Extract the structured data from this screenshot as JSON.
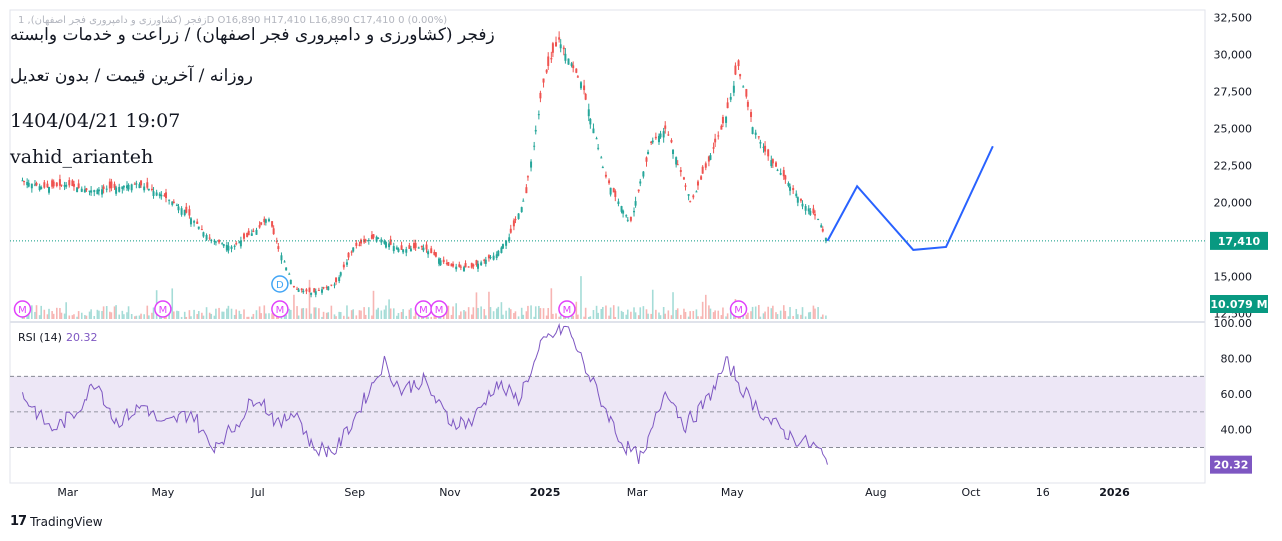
{
  "header": {
    "title": "زفجر (کشاورزی و دامپروری فجر اصفهان) / زراعت و خدمات وابسته",
    "subtitle": "روزانه / آخرین قیمت / بدون تعدیل",
    "datetime": "1404/04/21 19:07",
    "author": "vahid_arianteh",
    "ohlc_line": "زفجر (کشاورزی و دامپروری فجر اصفهان), 1D  O16,890  H17,410  L16,890  C17,410  0 (0.00%)"
  },
  "colors": {
    "up": "#26a69a",
    "down": "#ef5350",
    "projection": "#2962ff",
    "rsi_line": "#7e57c2",
    "rsi_band": "#ede7f6",
    "price_tag": "#089981",
    "rsi_tag": "#7e57c2",
    "marker": "#e040fb",
    "dividend_marker": "#42a5f5"
  },
  "chart_data": [
    {
      "type": "line",
      "name": "price",
      "x": [
        "2024-02-01",
        "2024-02-15",
        "2024-03-01",
        "2024-03-15",
        "2024-04-01",
        "2024-04-15",
        "2024-05-01",
        "2024-05-15",
        "2024-06-01",
        "2024-06-15",
        "2024-07-01",
        "2024-07-08",
        "2024-07-15",
        "2024-07-25",
        "2024-08-05",
        "2024-08-20",
        "2024-09-01",
        "2024-09-15",
        "2024-10-01",
        "2024-10-15",
        "2024-11-01",
        "2024-11-15",
        "2024-12-01",
        "2024-12-10",
        "2024-12-20",
        "2025-01-01",
        "2025-01-10",
        "2025-01-25",
        "2025-02-10",
        "2025-02-25",
        "2025-03-10",
        "2025-03-20",
        "2025-04-05",
        "2025-04-15",
        "2025-04-28",
        "2025-05-05",
        "2025-05-15",
        "2025-05-25",
        "2025-06-05",
        "2025-06-15",
        "2025-06-25",
        "2025-07-01"
      ],
      "values": [
        21500,
        21000,
        21200,
        20800,
        21000,
        21300,
        20500,
        19500,
        17500,
        17000,
        18200,
        19000,
        16800,
        14200,
        13900,
        14500,
        17000,
        17700,
        16800,
        17000,
        15700,
        15600,
        16500,
        17800,
        20500,
        28500,
        31000,
        28000,
        21500,
        18600,
        24000,
        25000,
        20000,
        22500,
        26000,
        29300,
        25000,
        23000,
        21500,
        20000,
        19000,
        17410
      ],
      "ylim": [
        12000,
        33000
      ],
      "yticks": [
        12500,
        15000,
        17500,
        20000,
        22500,
        25000,
        27500,
        30000,
        32500
      ],
      "ytick_labels": [
        "12,500",
        "15,000",
        "17,500",
        "20,000",
        "22,500",
        "25,000",
        "27,500",
        "30,000",
        "32,500"
      ],
      "last_price": 17410,
      "last_price_label": "17,410",
      "volume_label": "10.079 M"
    },
    {
      "type": "line",
      "name": "projection",
      "x": [
        "2025-07-01",
        "2025-07-20",
        "2025-08-25",
        "2025-09-15",
        "2025-10-15"
      ],
      "values": [
        17410,
        21100,
        16800,
        17000,
        23800
      ]
    },
    {
      "type": "line",
      "name": "RSI (14)",
      "label": "RSI (14)",
      "value_label": "20.32",
      "x": [
        "2024-02-01",
        "2024-02-20",
        "2024-03-05",
        "2024-03-20",
        "2024-04-01",
        "2024-04-20",
        "2024-05-01",
        "2024-05-20",
        "2024-06-01",
        "2024-06-15",
        "2024-07-01",
        "2024-07-15",
        "2024-07-25",
        "2024-08-05",
        "2024-08-20",
        "2024-09-01",
        "2024-09-20",
        "2024-10-01",
        "2024-10-15",
        "2024-11-01",
        "2024-11-15",
        "2024-12-01",
        "2024-12-15",
        "2025-01-01",
        "2025-01-15",
        "2025-02-01",
        "2025-02-20",
        "2025-03-05",
        "2025-03-20",
        "2025-04-01",
        "2025-04-15",
        "2025-04-28",
        "2025-05-10",
        "2025-05-25",
        "2025-06-10",
        "2025-06-25",
        "2025-07-01"
      ],
      "values": [
        60,
        40,
        48,
        68,
        44,
        54,
        42,
        50,
        30,
        40,
        60,
        42,
        52,
        30,
        28,
        46,
        78,
        62,
        68,
        45,
        44,
        66,
        57,
        90,
        98,
        66,
        32,
        23,
        64,
        42,
        56,
        78,
        60,
        45,
        35,
        30,
        20.32
      ],
      "ylim": [
        10,
        100
      ],
      "yticks": [
        40,
        60,
        80,
        100
      ],
      "ytick_labels": [
        "40.00",
        "60.00",
        "80.00",
        "100.00"
      ],
      "band": [
        30,
        70
      ],
      "midline": 50
    }
  ],
  "xaxis": {
    "ticks": [
      {
        "date": "2024-03-01",
        "label": "Mar",
        "bold": false
      },
      {
        "date": "2024-05-01",
        "label": "May",
        "bold": false
      },
      {
        "date": "2024-07-01",
        "label": "Jul",
        "bold": false
      },
      {
        "date": "2024-09-01",
        "label": "Sep",
        "bold": false
      },
      {
        "date": "2024-11-01",
        "label": "Nov",
        "bold": false
      },
      {
        "date": "2025-01-01",
        "label": "2025",
        "bold": true
      },
      {
        "date": "2025-03-01",
        "label": "Mar",
        "bold": false
      },
      {
        "date": "2025-05-01",
        "label": "May",
        "bold": false
      },
      {
        "date": "2025-08-01",
        "label": "Aug",
        "bold": false
      },
      {
        "date": "2025-10-01",
        "label": "Oct",
        "bold": false
      },
      {
        "date": "2025-11-16",
        "label": "16",
        "bold": false
      },
      {
        "date": "2026-01-01",
        "label": "2026",
        "bold": true
      }
    ]
  },
  "markers": {
    "letter": "M",
    "dividend_letter": "D",
    "dates": [
      "2024-02-01",
      "2024-05-01",
      "2024-07-15",
      "2024-10-15",
      "2024-10-25",
      "2025-01-15",
      "2025-05-05"
    ],
    "dividend_date": "2024-07-15"
  },
  "branding": {
    "logo_mark": "17",
    "logo_text": "TradingView"
  }
}
